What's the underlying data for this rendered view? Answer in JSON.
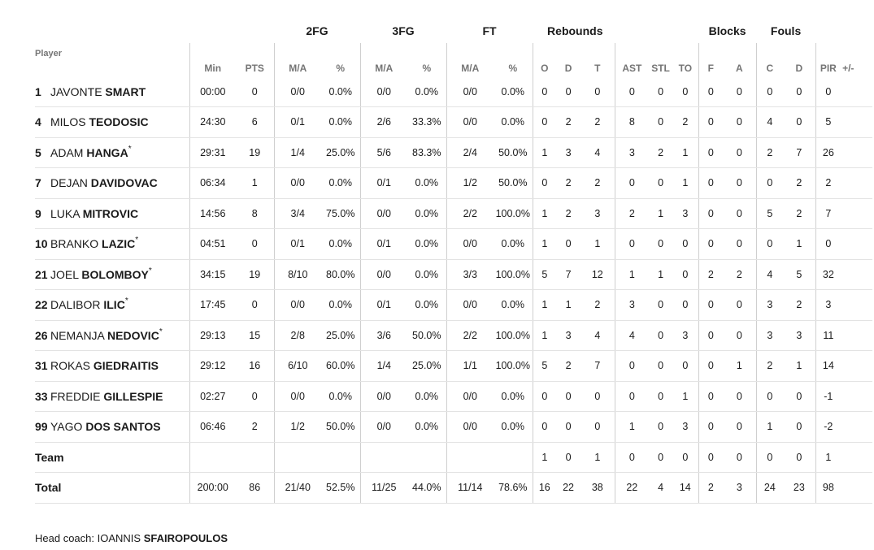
{
  "headers": {
    "player": "Player",
    "group_2fg": "2FG",
    "group_3fg": "3FG",
    "group_ft": "FT",
    "group_rebounds": "Rebounds",
    "group_blocks": "Blocks",
    "group_fouls": "Fouls",
    "min": "Min",
    "pts": "PTS",
    "fg2_ma": "M/A",
    "fg2_pct": "%",
    "fg3_ma": "M/A",
    "fg3_pct": "%",
    "ft_ma": "M/A",
    "ft_pct": "%",
    "reb_o": "O",
    "reb_d": "D",
    "reb_t": "T",
    "ast": "AST",
    "stl": "STL",
    "to": "TO",
    "blk_f": "F",
    "blk_a": "A",
    "foul_c": "C",
    "foul_d": "D",
    "pir": "PIR",
    "plusminus": "+/-"
  },
  "rows": [
    {
      "num": "1",
      "first": "JAVONTE",
      "last": "SMART",
      "star": "",
      "min": "00:00",
      "pts": "0",
      "fg2": "0/0",
      "fg2p": "0.0%",
      "fg3": "0/0",
      "fg3p": "0.0%",
      "ft": "0/0",
      "ftp": "0.0%",
      "o": "0",
      "d": "0",
      "t": "0",
      "ast": "0",
      "stl": "0",
      "to": "0",
      "bf": "0",
      "ba": "0",
      "fc": "0",
      "fd": "0",
      "pir": "0",
      "pm": ""
    },
    {
      "num": "4",
      "first": "MILOS",
      "last": "TEODOSIC",
      "star": "",
      "min": "24:30",
      "pts": "6",
      "fg2": "0/1",
      "fg2p": "0.0%",
      "fg3": "2/6",
      "fg3p": "33.3%",
      "ft": "0/0",
      "ftp": "0.0%",
      "o": "0",
      "d": "2",
      "t": "2",
      "ast": "8",
      "stl": "0",
      "to": "2",
      "bf": "0",
      "ba": "0",
      "fc": "4",
      "fd": "0",
      "pir": "5",
      "pm": ""
    },
    {
      "num": "5",
      "first": "ADAM",
      "last": "HANGA",
      "star": "*",
      "min": "29:31",
      "pts": "19",
      "fg2": "1/4",
      "fg2p": "25.0%",
      "fg3": "5/6",
      "fg3p": "83.3%",
      "ft": "2/4",
      "ftp": "50.0%",
      "o": "1",
      "d": "3",
      "t": "4",
      "ast": "3",
      "stl": "2",
      "to": "1",
      "bf": "0",
      "ba": "0",
      "fc": "2",
      "fd": "7",
      "pir": "26",
      "pm": ""
    },
    {
      "num": "7",
      "first": "DEJAN",
      "last": "DAVIDOVAC",
      "star": "",
      "min": "06:34",
      "pts": "1",
      "fg2": "0/0",
      "fg2p": "0.0%",
      "fg3": "0/1",
      "fg3p": "0.0%",
      "ft": "1/2",
      "ftp": "50.0%",
      "o": "0",
      "d": "2",
      "t": "2",
      "ast": "0",
      "stl": "0",
      "to": "1",
      "bf": "0",
      "ba": "0",
      "fc": "0",
      "fd": "2",
      "pir": "2",
      "pm": ""
    },
    {
      "num": "9",
      "first": "LUKA",
      "last": "MITROVIC",
      "star": "",
      "min": "14:56",
      "pts": "8",
      "fg2": "3/4",
      "fg2p": "75.0%",
      "fg3": "0/0",
      "fg3p": "0.0%",
      "ft": "2/2",
      "ftp": "100.0%",
      "o": "1",
      "d": "2",
      "t": "3",
      "ast": "2",
      "stl": "1",
      "to": "3",
      "bf": "0",
      "ba": "0",
      "fc": "5",
      "fd": "2",
      "pir": "7",
      "pm": ""
    },
    {
      "num": "10",
      "first": "BRANKO",
      "last": "LAZIC",
      "star": "*",
      "min": "04:51",
      "pts": "0",
      "fg2": "0/1",
      "fg2p": "0.0%",
      "fg3": "0/1",
      "fg3p": "0.0%",
      "ft": "0/0",
      "ftp": "0.0%",
      "o": "1",
      "d": "0",
      "t": "1",
      "ast": "0",
      "stl": "0",
      "to": "0",
      "bf": "0",
      "ba": "0",
      "fc": "0",
      "fd": "1",
      "pir": "0",
      "pm": ""
    },
    {
      "num": "21",
      "first": "JOEL",
      "last": "BOLOMBOY",
      "star": "*",
      "min": "34:15",
      "pts": "19",
      "fg2": "8/10",
      "fg2p": "80.0%",
      "fg3": "0/0",
      "fg3p": "0.0%",
      "ft": "3/3",
      "ftp": "100.0%",
      "o": "5",
      "d": "7",
      "t": "12",
      "ast": "1",
      "stl": "1",
      "to": "0",
      "bf": "2",
      "ba": "2",
      "fc": "4",
      "fd": "5",
      "pir": "32",
      "pm": ""
    },
    {
      "num": "22",
      "first": "DALIBOR",
      "last": "ILIC",
      "star": "*",
      "min": "17:45",
      "pts": "0",
      "fg2": "0/0",
      "fg2p": "0.0%",
      "fg3": "0/1",
      "fg3p": "0.0%",
      "ft": "0/0",
      "ftp": "0.0%",
      "o": "1",
      "d": "1",
      "t": "2",
      "ast": "3",
      "stl": "0",
      "to": "0",
      "bf": "0",
      "ba": "0",
      "fc": "3",
      "fd": "2",
      "pir": "3",
      "pm": ""
    },
    {
      "num": "26",
      "first": "NEMANJA",
      "last": "NEDOVIC",
      "star": "*",
      "min": "29:13",
      "pts": "15",
      "fg2": "2/8",
      "fg2p": "25.0%",
      "fg3": "3/6",
      "fg3p": "50.0%",
      "ft": "2/2",
      "ftp": "100.0%",
      "o": "1",
      "d": "3",
      "t": "4",
      "ast": "4",
      "stl": "0",
      "to": "3",
      "bf": "0",
      "ba": "0",
      "fc": "3",
      "fd": "3",
      "pir": "11",
      "pm": ""
    },
    {
      "num": "31",
      "first": "ROKAS",
      "last": "GIEDRAITIS",
      "star": "",
      "min": "29:12",
      "pts": "16",
      "fg2": "6/10",
      "fg2p": "60.0%",
      "fg3": "1/4",
      "fg3p": "25.0%",
      "ft": "1/1",
      "ftp": "100.0%",
      "o": "5",
      "d": "2",
      "t": "7",
      "ast": "0",
      "stl": "0",
      "to": "0",
      "bf": "0",
      "ba": "1",
      "fc": "2",
      "fd": "1",
      "pir": "14",
      "pm": ""
    },
    {
      "num": "33",
      "first": "FREDDIE",
      "last": "GILLESPIE",
      "star": "",
      "min": "02:27",
      "pts": "0",
      "fg2": "0/0",
      "fg2p": "0.0%",
      "fg3": "0/0",
      "fg3p": "0.0%",
      "ft": "0/0",
      "ftp": "0.0%",
      "o": "0",
      "d": "0",
      "t": "0",
      "ast": "0",
      "stl": "0",
      "to": "1",
      "bf": "0",
      "ba": "0",
      "fc": "0",
      "fd": "0",
      "pir": "-1",
      "pm": ""
    },
    {
      "num": "99",
      "first": "YAGO",
      "last": "DOS SANTOS",
      "star": "",
      "min": "06:46",
      "pts": "2",
      "fg2": "1/2",
      "fg2p": "50.0%",
      "fg3": "0/0",
      "fg3p": "0.0%",
      "ft": "0/0",
      "ftp": "0.0%",
      "o": "0",
      "d": "0",
      "t": "0",
      "ast": "1",
      "stl": "0",
      "to": "3",
      "bf": "0",
      "ba": "0",
      "fc": "1",
      "fd": "0",
      "pir": "-2",
      "pm": ""
    }
  ],
  "team_row": {
    "label": "Team",
    "min": "",
    "pts": "",
    "fg2": "",
    "fg2p": "",
    "fg3": "",
    "fg3p": "",
    "ft": "",
    "ftp": "",
    "o": "1",
    "d": "0",
    "t": "1",
    "ast": "0",
    "stl": "0",
    "to": "0",
    "bf": "0",
    "ba": "0",
    "fc": "0",
    "fd": "0",
    "pir": "1",
    "pm": ""
  },
  "total_row": {
    "label": "Total",
    "min": "200:00",
    "pts": "86",
    "fg2": "21/40",
    "fg2p": "52.5%",
    "fg3": "11/25",
    "fg3p": "44.0%",
    "ft": "11/14",
    "ftp": "78.6%",
    "o": "16",
    "d": "22",
    "t": "38",
    "ast": "22",
    "stl": "4",
    "to": "14",
    "bf": "2",
    "ba": "3",
    "fc": "24",
    "fd": "23",
    "pir": "98",
    "pm": ""
  },
  "coach": {
    "prefix": "Head coach:",
    "first": "IOANNIS",
    "last": "SFAIROPOULOS"
  }
}
